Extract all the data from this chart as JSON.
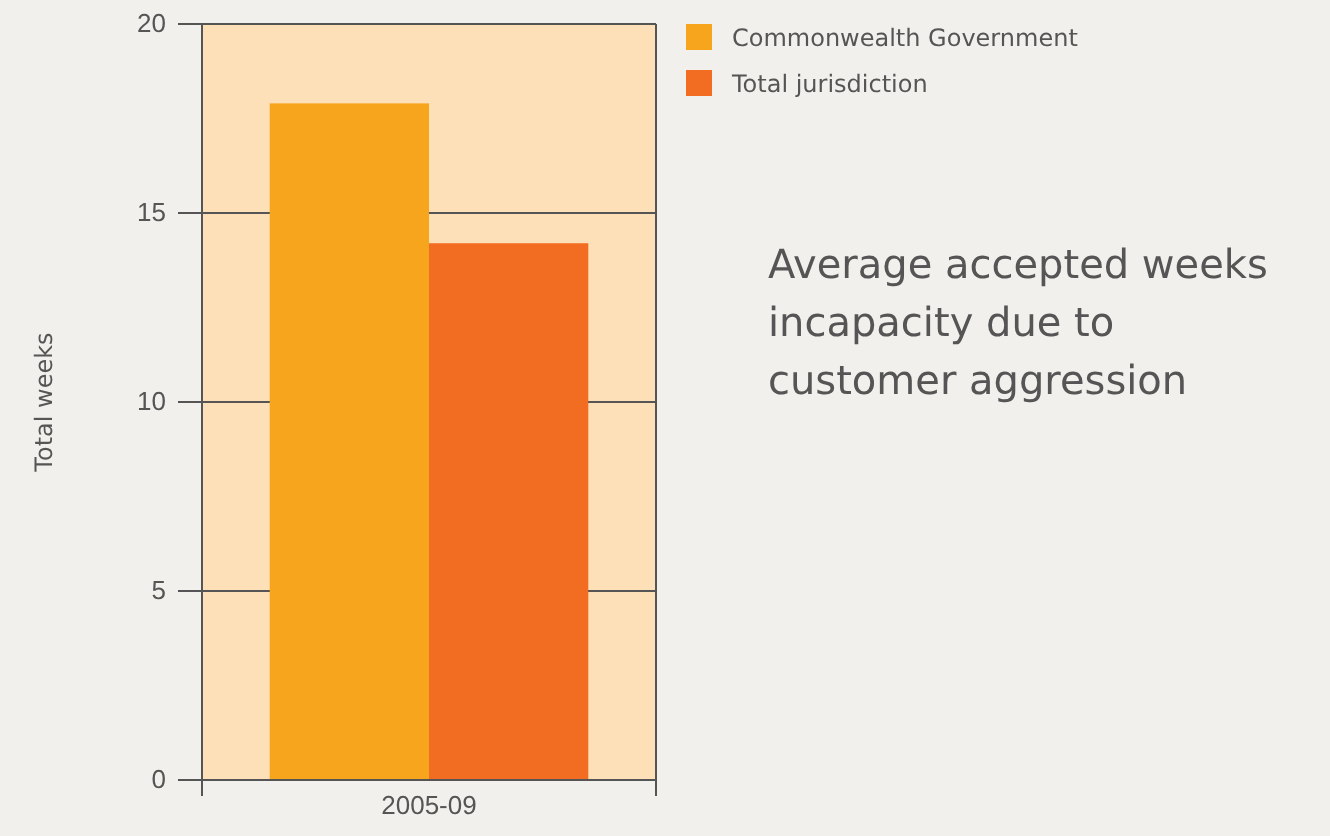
{
  "chart_data": {
    "type": "bar",
    "categories": [
      "2005-09"
    ],
    "series": [
      {
        "name": "Commonwealth Government",
        "color": "#f7a51c",
        "values": [
          17.9
        ]
      },
      {
        "name": "Total jurisdiction",
        "color": "#f26d21",
        "values": [
          14.2
        ]
      }
    ],
    "ylabel": "Total weeks",
    "ylim": [
      0,
      20
    ],
    "yticks": [
      0,
      5,
      10,
      15,
      20
    ],
    "grid": "y",
    "legend": "top right",
    "annotations": [
      "Average accepted weeks incapacity due to customer aggression"
    ]
  }
}
